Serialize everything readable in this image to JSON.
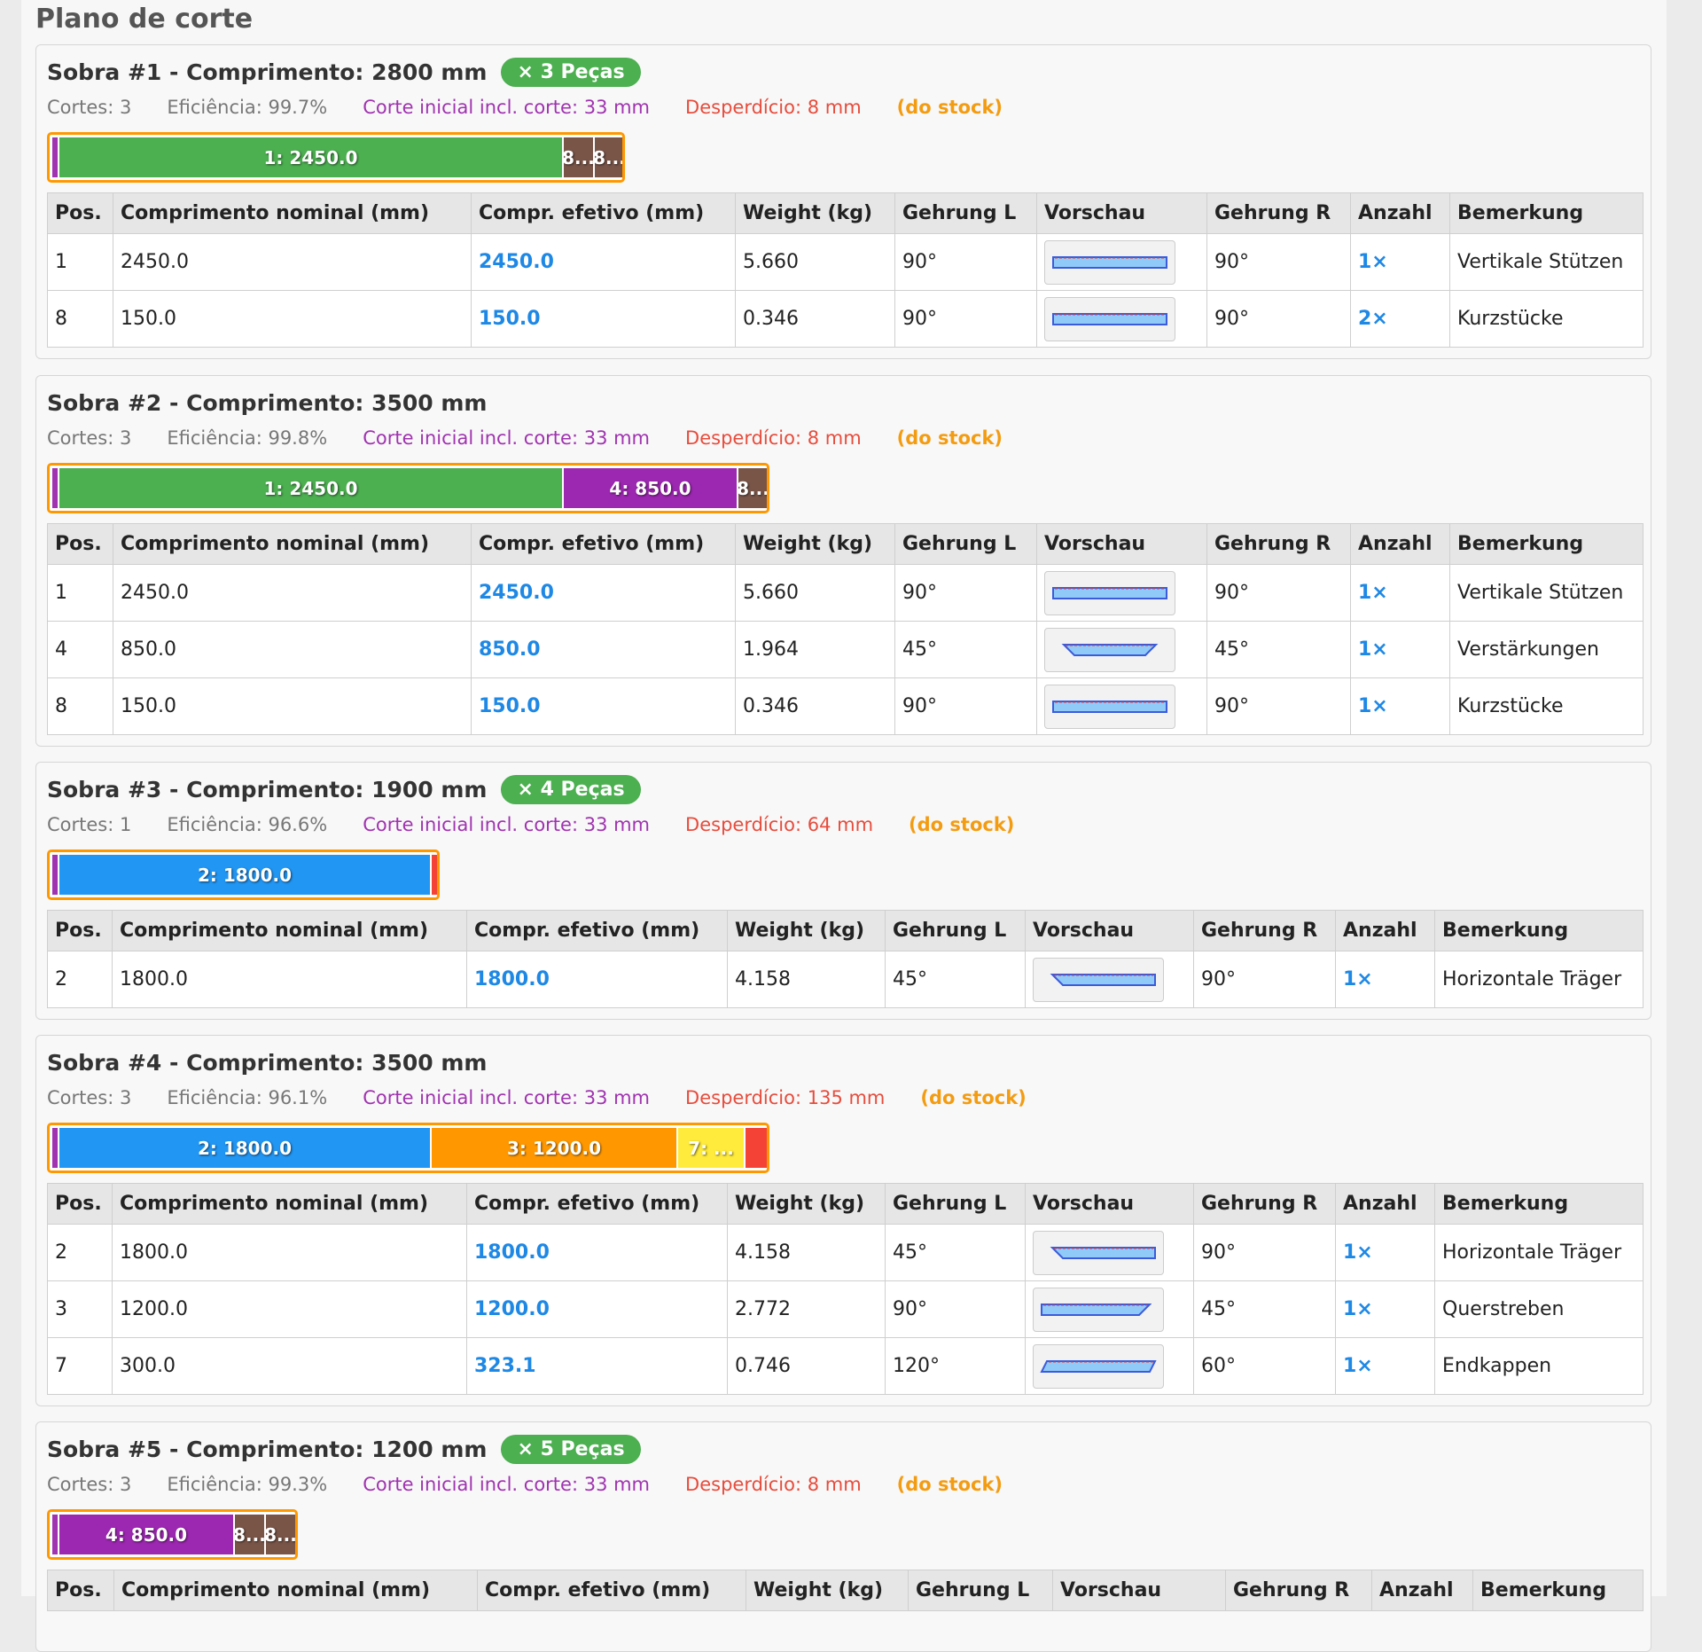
{
  "page_title": "Plano de corte",
  "colors": {
    "piece_1": "#4caf50",
    "piece_2": "#2196f3",
    "piece_3": "#ff9800",
    "piece_4": "#9c27b0",
    "piece_7": "#ffeb3b",
    "piece_8": "#795548",
    "waste": "#f44336",
    "initial_cut": "#a033b0",
    "efetivo": "#1e88e5",
    "bar_border": "#ff9800"
  },
  "table_headers": [
    "Pos.",
    "Comprimento nominal (mm)",
    "Compr. efetivo (mm)",
    "Weight (kg)",
    "Gehrung L",
    "Vorschau",
    "Gehrung R",
    "Anzahl",
    "Bemerkung"
  ],
  "sobras": [
    {
      "title": "Sobra #1 - Comprimento: 2800 mm",
      "badge": "× 3 Peças",
      "cuts": "Cortes: 3",
      "efficiency": "Eficiência: 99.7%",
      "initial_cut": "Corte inicial incl. corte: 33 mm",
      "waste": "Desperdício: 8 mm",
      "stock": "(do stock)",
      "segments": [
        {
          "label": "1: 2450.0",
          "color": "piece_1",
          "length_mm": 2450
        },
        {
          "label": "8...",
          "color": "piece_8",
          "length_mm": 150
        },
        {
          "label": "8...",
          "color": "piece_8",
          "length_mm": 150
        }
      ],
      "rows": [
        {
          "pos": "1",
          "nominal": "2450.0",
          "efetivo": "2450.0",
          "weight": "5.660",
          "gl": "90°",
          "gr": "90°",
          "qty": "1×",
          "note": "Vertikale Stützen"
        },
        {
          "pos": "8",
          "nominal": "150.0",
          "efetivo": "150.0",
          "weight": "0.346",
          "gl": "90°",
          "gr": "90°",
          "qty": "2×",
          "note": "Kurzstücke"
        }
      ]
    },
    {
      "title": "Sobra #2 - Comprimento: 3500 mm",
      "badge": "",
      "cuts": "Cortes: 3",
      "efficiency": "Eficiência: 99.8%",
      "initial_cut": "Corte inicial incl. corte: 33 mm",
      "waste": "Desperdício: 8 mm",
      "stock": "(do stock)",
      "segments": [
        {
          "label": "1: 2450.0",
          "color": "piece_1",
          "length_mm": 2450
        },
        {
          "label": "4: 850.0",
          "color": "piece_4",
          "length_mm": 850
        },
        {
          "label": "8...",
          "color": "piece_8",
          "length_mm": 150
        }
      ],
      "rows": [
        {
          "pos": "1",
          "nominal": "2450.0",
          "efetivo": "2450.0",
          "weight": "5.660",
          "gl": "90°",
          "gr": "90°",
          "qty": "1×",
          "note": "Vertikale Stützen"
        },
        {
          "pos": "4",
          "nominal": "850.0",
          "efetivo": "850.0",
          "weight": "1.964",
          "gl": "45°",
          "gr": "45°",
          "qty": "1×",
          "note": "Verstärkungen"
        },
        {
          "pos": "8",
          "nominal": "150.0",
          "efetivo": "150.0",
          "weight": "0.346",
          "gl": "90°",
          "gr": "90°",
          "qty": "1×",
          "note": "Kurzstücke"
        }
      ]
    },
    {
      "title": "Sobra #3 - Comprimento: 1900 mm",
      "badge": "× 4 Peças",
      "cuts": "Cortes: 1",
      "efficiency": "Eficiência: 96.6%",
      "initial_cut": "Corte inicial incl. corte: 33 mm",
      "waste": "Desperdício: 64 mm",
      "stock": "(do stock)",
      "segments": [
        {
          "label": "2: 1800.0",
          "color": "piece_2",
          "length_mm": 1800
        },
        {
          "label": "",
          "color": "waste",
          "length_mm": 64
        }
      ],
      "rows": [
        {
          "pos": "2",
          "nominal": "1800.0",
          "efetivo": "1800.0",
          "weight": "4.158",
          "gl": "45°",
          "gr": "90°",
          "qty": "1×",
          "note": "Horizontale Träger"
        }
      ]
    },
    {
      "title": "Sobra #4 - Comprimento: 3500 mm",
      "badge": "",
      "cuts": "Cortes: 3",
      "efficiency": "Eficiência: 96.1%",
      "initial_cut": "Corte inicial incl. corte: 33 mm",
      "waste": "Desperdício: 135 mm",
      "stock": "(do stock)",
      "segments": [
        {
          "label": "2: 1800.0",
          "color": "piece_2",
          "length_mm": 1800
        },
        {
          "label": "3: 1200.0",
          "color": "piece_3",
          "length_mm": 1200
        },
        {
          "label": "7: ...",
          "color": "piece_7",
          "length_mm": 323.1
        },
        {
          "label": "",
          "color": "waste",
          "length_mm": 135
        }
      ],
      "rows": [
        {
          "pos": "2",
          "nominal": "1800.0",
          "efetivo": "1800.0",
          "weight": "4.158",
          "gl": "45°",
          "gr": "90°",
          "qty": "1×",
          "note": "Horizontale Träger"
        },
        {
          "pos": "3",
          "nominal": "1200.0",
          "efetivo": "1200.0",
          "weight": "2.772",
          "gl": "90°",
          "gr": "45°",
          "qty": "1×",
          "note": "Querstreben"
        },
        {
          "pos": "7",
          "nominal": "300.0",
          "efetivo": "323.1",
          "weight": "0.746",
          "gl": "120°",
          "gr": "60°",
          "qty": "1×",
          "note": "Endkappen"
        }
      ]
    },
    {
      "title": "Sobra #5 - Comprimento: 1200 mm",
      "badge": "× 5 Peças",
      "cuts": "Cortes: 3",
      "efficiency": "Eficiência: 99.3%",
      "initial_cut": "Corte inicial incl. corte: 33 mm",
      "waste": "Desperdício: 8 mm",
      "stock": "(do stock)",
      "segments": [
        {
          "label": "4: 850.0",
          "color": "piece_4",
          "length_mm": 850
        },
        {
          "label": "8...",
          "color": "piece_8",
          "length_mm": 150
        },
        {
          "label": "8...",
          "color": "piece_8",
          "length_mm": 150
        }
      ],
      "rows": []
    }
  ]
}
